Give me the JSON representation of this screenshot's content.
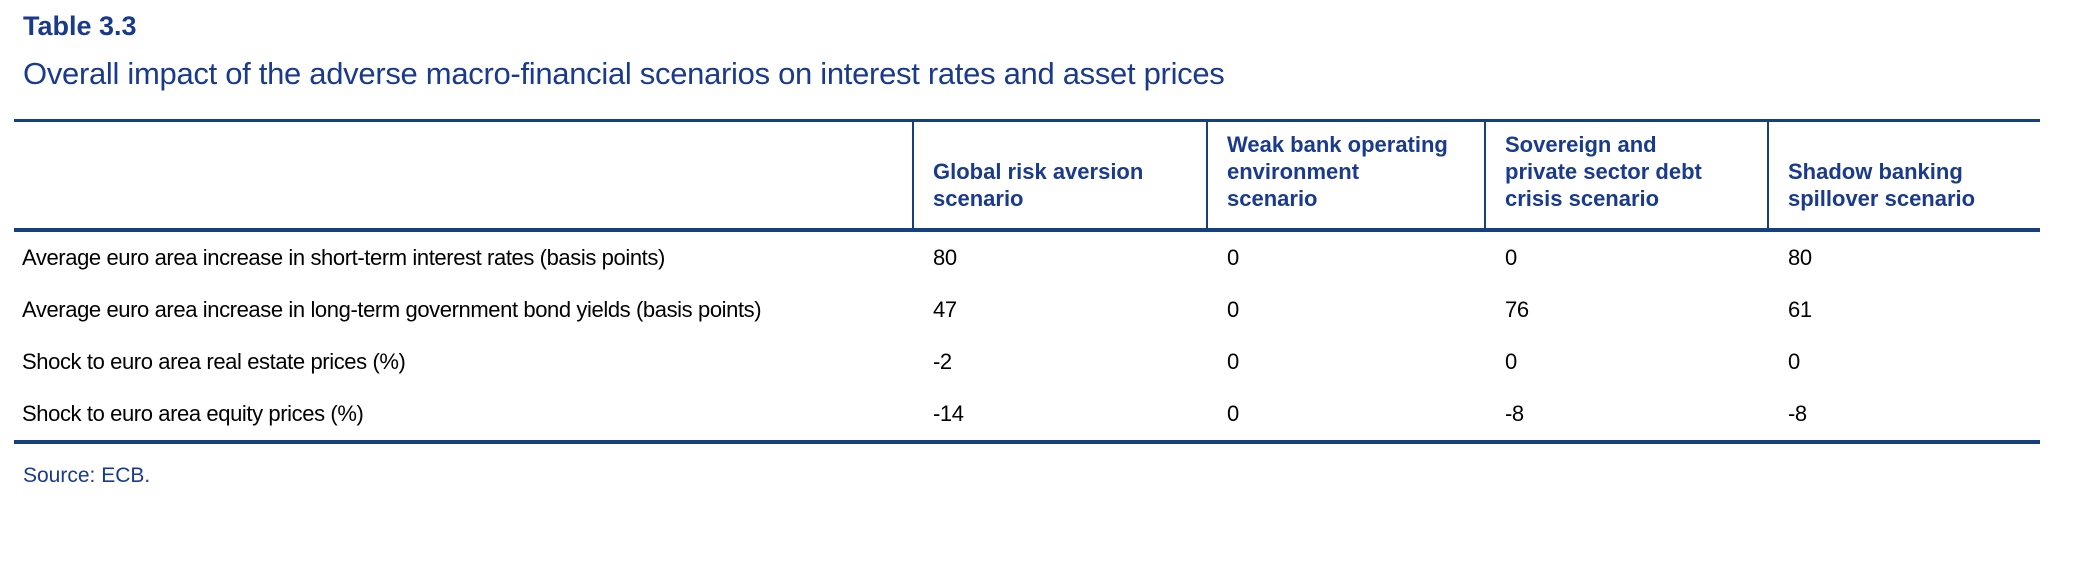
{
  "title": "Table 3.3",
  "subtitle": "Overall impact of the adverse macro-financial scenarios on interest rates and asset prices",
  "colors": {
    "heading_blue": "#1a3a8c",
    "rule_blue": "#14407e",
    "body_text": "#000000",
    "background": "#ffffff"
  },
  "table": {
    "column_headers": [
      "",
      "Global risk aversion\nscenario",
      "Weak bank operating\nenvironment\nscenario",
      "Sovereign and\nprivate sector debt\ncrisis scenario",
      "Shadow banking\nspillover scenario"
    ],
    "rows": [
      {
        "label": "Average euro area increase in short-term interest rates (basis points)",
        "values": [
          "80",
          "0",
          "0",
          "80"
        ]
      },
      {
        "label": "Average euro area increase in long-term government bond yields (basis points)",
        "values": [
          "47",
          "0",
          "76",
          "61"
        ]
      },
      {
        "label": "Shock to euro area real estate prices (%)",
        "values": [
          "-2",
          "0",
          "0",
          "0"
        ]
      },
      {
        "label": "Shock to euro area equity prices (%)",
        "values": [
          "-14",
          "0",
          "-8",
          "-8"
        ]
      }
    ]
  },
  "source": "Source: ECB."
}
